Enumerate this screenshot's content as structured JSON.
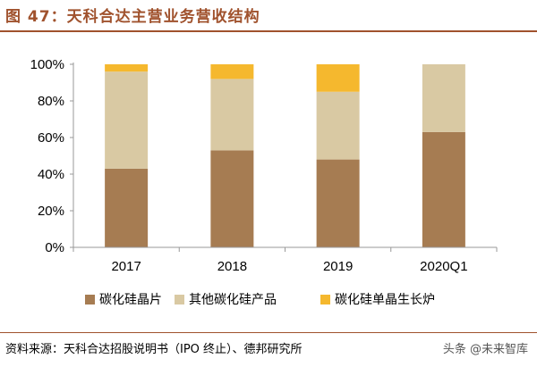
{
  "title": "图 47：天科合达主营业务营收结构",
  "source": "资料来源：天科合达招股说明书（IPO 终止）、德邦研究所",
  "watermark": "头条 @未来智库",
  "chart_data": {
    "type": "bar",
    "stacked": true,
    "categories": [
      "2017",
      "2018",
      "2019",
      "2020Q1"
    ],
    "series": [
      {
        "name": "碳化硅晶片",
        "color": "#a67c52",
        "values": [
          43,
          53,
          48,
          63
        ]
      },
      {
        "name": "其他碳化硅产品",
        "color": "#d9c9a3",
        "values": [
          53,
          39,
          37,
          37
        ]
      },
      {
        "name": "碳化硅单晶生长炉",
        "color": "#f5b82e",
        "values": [
          4,
          8,
          15,
          0
        ]
      }
    ],
    "ylim": [
      0,
      100
    ],
    "yticks": [
      0,
      20,
      40,
      60,
      80,
      100
    ],
    "ytick_labels": [
      "0%",
      "20%",
      "40%",
      "60%",
      "80%",
      "100%"
    ],
    "legend_position": "bottom",
    "grid": false
  }
}
